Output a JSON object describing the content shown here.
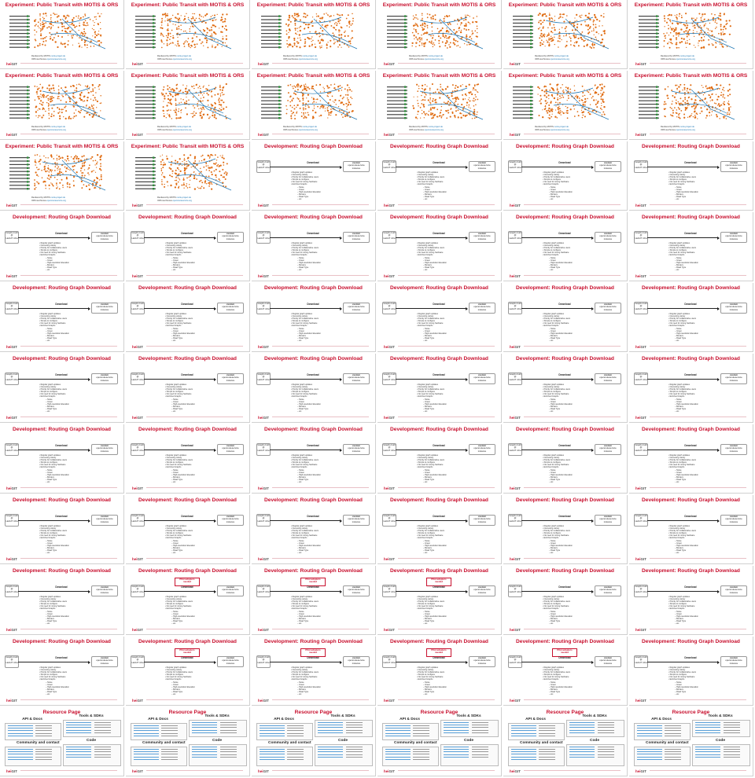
{
  "colors": {
    "accent": "#c8102e",
    "dot": "#e06c12",
    "line": "#1f77b4",
    "border": "#d0d0d0"
  },
  "titles": {
    "experiment": "Experiment: Public Transit with MOTIS & ORS",
    "development": "Development: Routing Graph Download",
    "resources": "Resource Page"
  },
  "logo": {
    "prefix": "heiGIT",
    "mark": ""
  },
  "experiment": {
    "caption_1_label": "Rendered by MOTIS",
    "caption_1_link": "motis-project.de",
    "caption_2_label": "ORS isochrones",
    "caption_2_link": "openrouteservice.org"
  },
  "development": {
    "left_box": [
      "Graphs built",
      "@",
      "HeiGIT infra"
    ],
    "center_label": "Download",
    "right_box_title": "custom",
    "right_box_lines": [
      "openrouteservice",
      "instance"
    ],
    "pilot_label": [
      "Pilot adopters",
      "needed"
    ],
    "bullets": [
      "Regular graph updates",
      "Interesting variety",
      "Priority for Collaborative users",
      "Simple to configure",
      "No need for strong hardware",
      "Enriched Graphs"
    ],
    "sub_bullets": [
      "Noise",
      "Green",
      "High-resolution Elevation",
      "Borders",
      "Road Type",
      "etc"
    ]
  },
  "resources": {
    "api_title": "API & Docs",
    "tools_title": "Tools & SDKs",
    "community_title": "Community and contact",
    "code_title": "Code"
  },
  "slides": [
    "experiment",
    "experiment",
    "experiment",
    "experiment",
    "experiment",
    "experiment",
    "experiment",
    "experiment",
    "experiment",
    "experiment",
    "experiment",
    "experiment",
    "experiment",
    "experiment",
    "development",
    "development",
    "development",
    "development",
    "development",
    "development",
    "development",
    "development",
    "development",
    "development",
    "development",
    "development",
    "development",
    "development",
    "development",
    "development",
    "development",
    "development",
    "development",
    "development",
    "development",
    "development",
    "development",
    "development",
    "development",
    "development",
    "development",
    "development",
    "development",
    "development",
    "development",
    "development",
    "development",
    "development",
    "development",
    "pilot",
    "pilot",
    "pilot",
    "development",
    "development",
    "development",
    "pilot",
    "pilot",
    "pilot",
    "pilot",
    "development",
    "resources",
    "resources",
    "resources",
    "resources",
    "resources",
    "resources"
  ]
}
